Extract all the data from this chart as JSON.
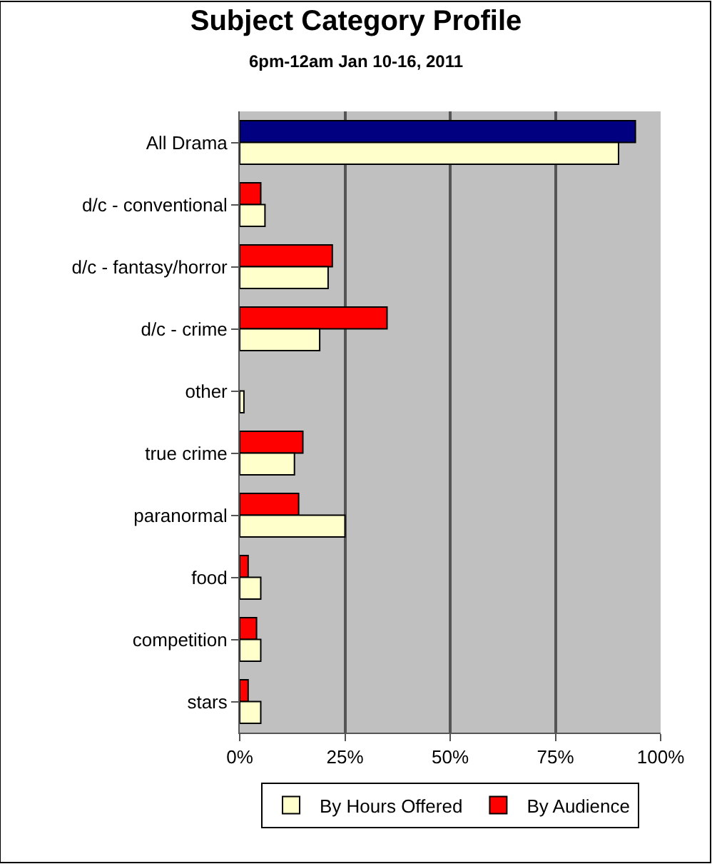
{
  "chart_data": {
    "type": "bar",
    "orientation": "horizontal",
    "title": "Subject Category Profile",
    "subtitle": "6pm-12am Jan 10-16, 2011",
    "categories": [
      "All Drama",
      "d/c - conventional",
      "d/c - fantasy/horror",
      "d/c - crime",
      "other",
      "true crime",
      "paranormal",
      "food",
      "competition",
      "stars"
    ],
    "series": [
      {
        "name": "By Audience",
        "color": "#ff0000",
        "colors": [
          "#000080",
          "#ff0000",
          "#ff0000",
          "#ff0000",
          "#ff0000",
          "#ff0000",
          "#ff0000",
          "#ff0000",
          "#ff0000",
          "#ff0000"
        ],
        "values": [
          94,
          5,
          22,
          35,
          null,
          15,
          14,
          2,
          4,
          2
        ]
      },
      {
        "name": "By Hours Offered",
        "color": "#ffffcc",
        "values": [
          90,
          6,
          21,
          19,
          1,
          13,
          25,
          5,
          5,
          5
        ]
      }
    ],
    "xlim": [
      0,
      100
    ],
    "xticks": [
      {
        "value": 0,
        "label": "0%"
      },
      {
        "value": 25,
        "label": "25%"
      },
      {
        "value": 50,
        "label": "50%"
      },
      {
        "value": 75,
        "label": "75%"
      },
      {
        "value": 100,
        "label": "100%"
      }
    ],
    "grid": "x",
    "legend": "bottom"
  }
}
